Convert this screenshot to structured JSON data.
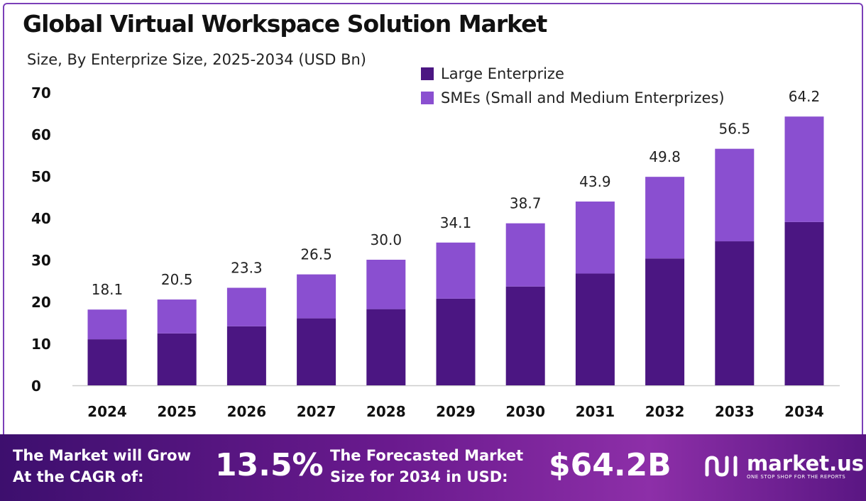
{
  "title": "Global Virtual Workspace Solution Market",
  "subtitle": "Size, By Enterprize Size, 2025-2034 (USD Bn)",
  "colors": {
    "large": "#4b1682",
    "smes": "#8a4fd0",
    "axis": "#cccccc",
    "banner_start": "#3d0f6e",
    "banner_end": "#8d2fa8"
  },
  "chart_data": {
    "type": "bar",
    "stacked": true,
    "categories": [
      "2024",
      "2025",
      "2026",
      "2027",
      "2028",
      "2029",
      "2030",
      "2031",
      "2032",
      "2033",
      "2034"
    ],
    "series": [
      {
        "name": "Large Enterprize",
        "values": [
          11.0,
          12.4,
          14.1,
          16.0,
          18.2,
          20.7,
          23.6,
          26.7,
          30.3,
          34.4,
          39.0
        ]
      },
      {
        "name": "SMEs (Small and Medium Enterprizes)",
        "values": [
          7.1,
          8.1,
          9.2,
          10.5,
          11.8,
          13.4,
          15.1,
          17.2,
          19.5,
          22.1,
          25.2
        ]
      }
    ],
    "totals": [
      "18.1",
      "20.5",
      "23.3",
      "26.5",
      "30.0",
      "34.1",
      "38.7",
      "43.9",
      "49.8",
      "56.5",
      "64.2"
    ],
    "yticks": [
      0,
      10,
      20,
      30,
      40,
      50,
      60,
      70
    ],
    "ylim": [
      0,
      70
    ],
    "grid": false,
    "legend_position": "top-right"
  },
  "banner": {
    "cagr_label": "The Market will Grow\nAt the CAGR of:",
    "cagr_value": "13.5%",
    "forecast_label": "The Forecasted Market\nSize for 2034 in USD:",
    "forecast_value": "$64.2B",
    "brand_name": "market.us",
    "brand_tagline": "ONE STOP SHOP FOR THE REPORTS",
    "brand_icon": "market-us-logo-icon"
  }
}
